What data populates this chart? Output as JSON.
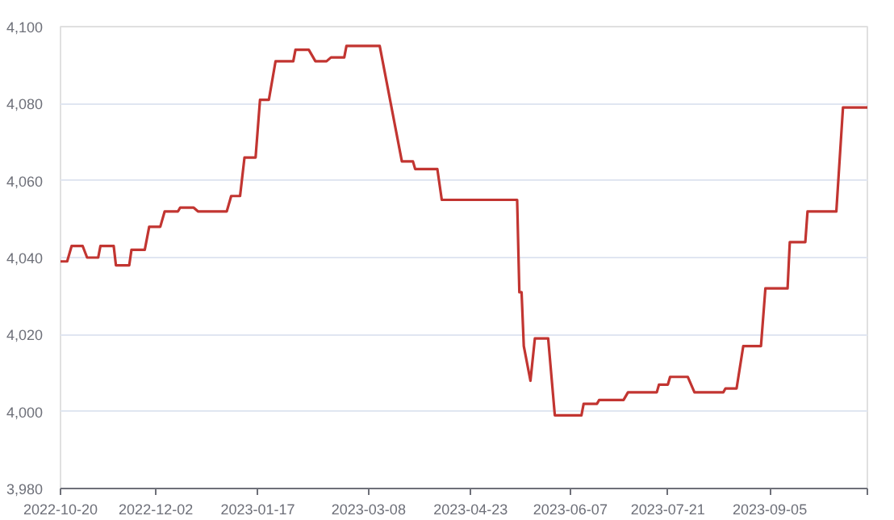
{
  "chart_data": {
    "type": "line",
    "x": [
      "2022-10-20",
      "2022-10-23",
      "2022-10-25",
      "2022-10-30",
      "2022-11-01",
      "2022-11-06",
      "2022-11-07",
      "2022-11-13",
      "2022-11-14",
      "2022-11-20",
      "2022-11-21",
      "2022-11-27",
      "2022-11-29",
      "2022-12-04",
      "2022-12-06",
      "2022-12-12",
      "2022-12-13",
      "2022-12-19",
      "2022-12-21",
      "2023-01-03",
      "2023-01-05",
      "2023-01-09",
      "2023-01-11",
      "2023-01-16",
      "2023-01-18",
      "2023-01-22",
      "2023-01-25",
      "2023-02-02",
      "2023-02-03",
      "2023-02-09",
      "2023-02-12",
      "2023-02-17",
      "2023-02-19",
      "2023-02-25",
      "2023-02-26",
      "2023-03-13",
      "2023-03-23",
      "2023-03-28",
      "2023-03-29",
      "2023-04-08",
      "2023-04-10",
      "2023-05-14",
      "2023-05-15",
      "2023-05-16",
      "2023-05-17",
      "2023-05-20",
      "2023-05-22",
      "2023-05-28",
      "2023-05-31",
      "2023-06-12",
      "2023-06-13",
      "2023-06-19",
      "2023-06-20",
      "2023-07-01",
      "2023-07-03",
      "2023-07-16",
      "2023-07-17",
      "2023-07-21",
      "2023-07-22",
      "2023-07-30",
      "2023-08-02",
      "2023-08-15",
      "2023-08-16",
      "2023-08-21",
      "2023-08-24",
      "2023-09-01",
      "2023-09-03",
      "2023-09-13",
      "2023-09-14",
      "2023-09-21",
      "2023-09-22",
      "2023-10-05",
      "2023-10-07",
      "2023-10-08",
      "2023-10-19"
    ],
    "series": [
      {
        "color": "#c23531",
        "values": [
          4039,
          4039,
          4043,
          4043,
          4040,
          4040,
          4043,
          4043,
          4038,
          4038,
          4042,
          4042,
          4048,
          4048,
          4052,
          4052,
          4053,
          4053,
          4052,
          4052,
          4056,
          4056,
          4066,
          4066,
          4081,
          4081,
          4091,
          4091,
          4094,
          4094,
          4091,
          4091,
          4092,
          4092,
          4095,
          4095,
          4065,
          4065,
          4063,
          4063,
          4055,
          4055,
          4031,
          4031,
          4017,
          4008,
          4019,
          4019,
          3999,
          3999,
          4002,
          4002,
          4003,
          4003,
          4005,
          4005,
          4007,
          4007,
          4009,
          4009,
          4005,
          4005,
          4006,
          4006,
          4017,
          4017,
          4032,
          4032,
          4044,
          4044,
          4052,
          4052,
          4070,
          4079,
          4079
        ]
      }
    ],
    "xlim": [
      "2022-10-20",
      "2023-10-19"
    ],
    "xticks": [
      {
        "value": "2022-10-20",
        "label": "2022-10-20"
      },
      {
        "value": "2022-12-02",
        "label": "2022-12-02"
      },
      {
        "value": "2023-01-17",
        "label": "2023-01-17"
      },
      {
        "value": "2023-03-08",
        "label": "2023-03-08"
      },
      {
        "value": "2023-04-23",
        "label": "2023-04-23"
      },
      {
        "value": "2023-06-07",
        "label": "2023-06-07"
      },
      {
        "value": "2023-07-21",
        "label": "2023-07-21"
      },
      {
        "value": "2023-09-05",
        "label": "2023-09-05"
      },
      {
        "value": "2023-10-19",
        "label": null
      }
    ],
    "ylim": [
      3980,
      4100
    ],
    "yticks": [
      {
        "value": 3980,
        "label": "3,980"
      },
      {
        "value": 4000,
        "label": "4,000"
      },
      {
        "value": 4020,
        "label": "4,020"
      },
      {
        "value": 4040,
        "label": "4,040"
      },
      {
        "value": 4060,
        "label": "4,060"
      },
      {
        "value": 4080,
        "label": "4,080"
      },
      {
        "value": 4100,
        "label": "4,100"
      }
    ],
    "grid": "y",
    "line_style": "solid"
  }
}
